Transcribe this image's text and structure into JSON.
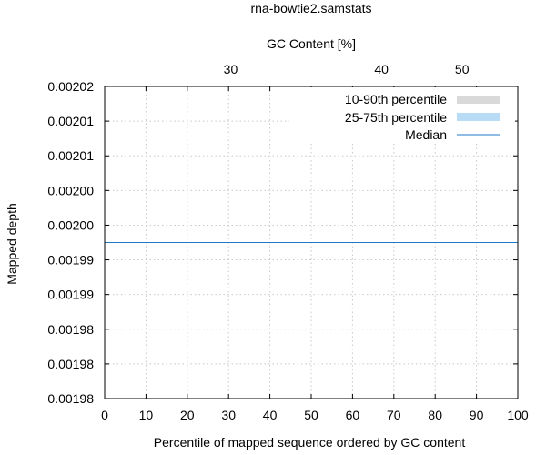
{
  "chart_data": {
    "type": "line",
    "title": "rna-bowtie2.samstats",
    "xlabel": "Percentile of mapped sequence ordered by GC content",
    "ylabel": "Mapped depth",
    "x2label": "GC Content [%]",
    "xlim": [
      0,
      100
    ],
    "ylim": [
      0.0019775,
      0.0020225
    ],
    "x_ticks": [
      0,
      10,
      20,
      30,
      40,
      50,
      60,
      70,
      80,
      90,
      100
    ],
    "x_tick_labels": [
      "0",
      "10",
      "20",
      "30",
      "40",
      "50",
      "60",
      "70",
      "80",
      "90",
      "100"
    ],
    "y_ticks": [
      0.0020225,
      0.0020175,
      0.0020125,
      0.0020075,
      0.0020025,
      0.0019975,
      0.0019925,
      0.0019875,
      0.0019825,
      0.0019775
    ],
    "y_tick_labels": [
      "0.00202",
      "0.00201",
      "0.00201",
      "0.00200",
      "0.00200",
      "0.00199",
      "0.00199",
      "0.00198",
      "0.00198",
      "0.00198"
    ],
    "x2_ticks": [
      30,
      40,
      50
    ],
    "x2_tick_labels": [
      "30",
      "40",
      "50"
    ],
    "x2_positions_percentile": [
      30.5,
      67,
      86.5
    ],
    "grid": true,
    "legend_position": "top-right",
    "series": [
      {
        "name": "10-90th percentile",
        "kind": "band",
        "color": "#d9d9d9"
      },
      {
        "name": "25-75th percentile",
        "kind": "band",
        "color": "#b8dcf5"
      },
      {
        "name": "Median",
        "kind": "line",
        "color": "#1f78c8",
        "x": [
          0,
          100
        ],
        "y": [
          0.002,
          0.002
        ]
      }
    ]
  }
}
